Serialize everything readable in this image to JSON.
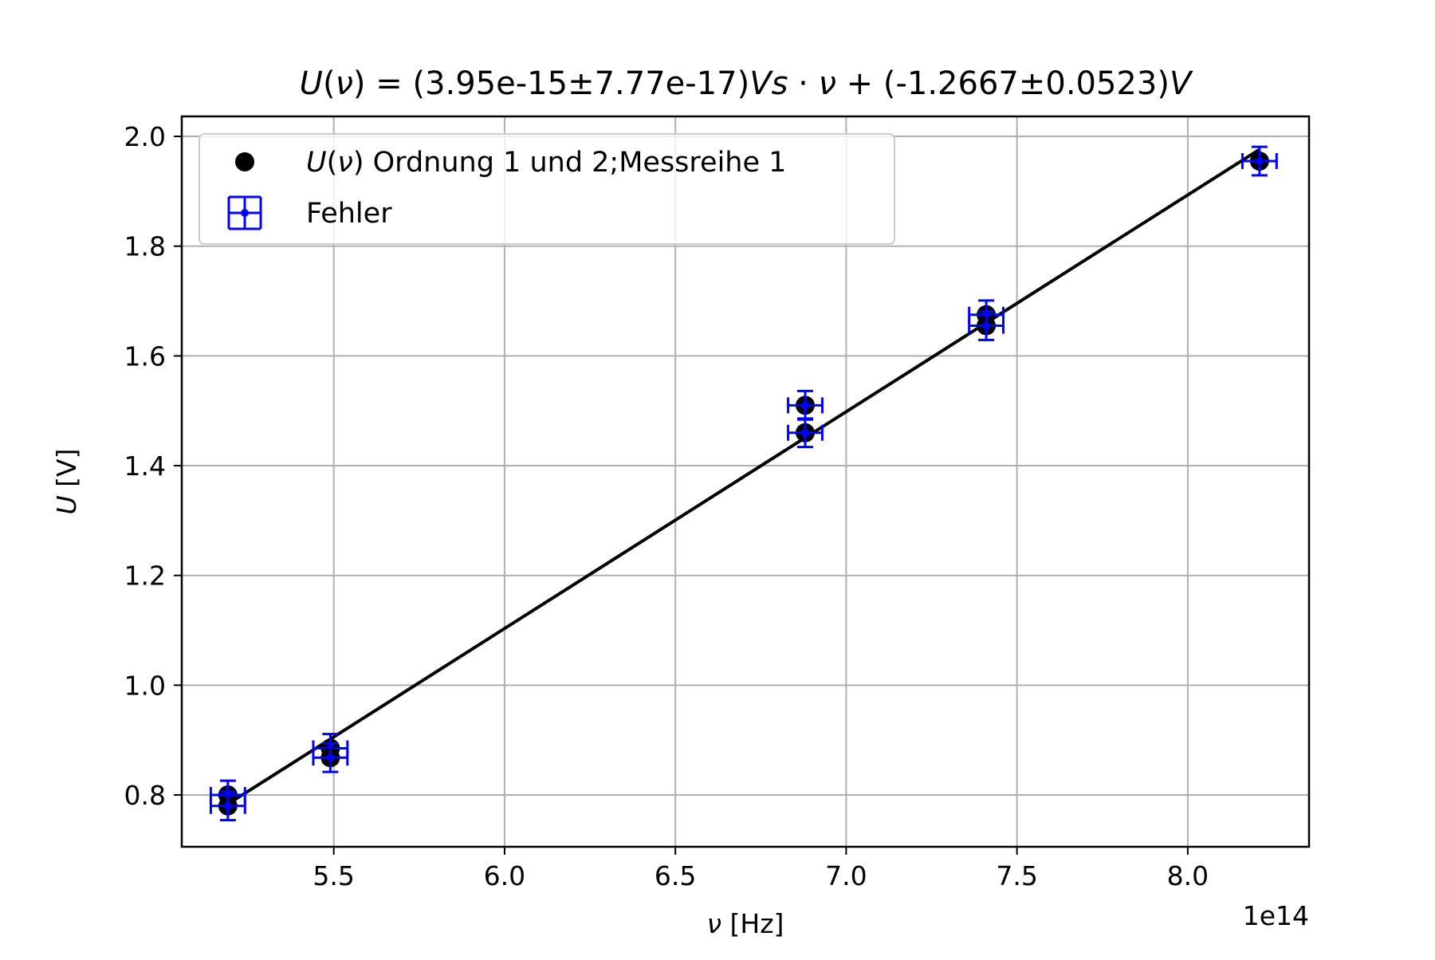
{
  "chart_data": {
    "type": "scatter",
    "title": {
      "parts": [
        {
          "text": "U",
          "italic": true
        },
        {
          "text": "(",
          "italic": false
        },
        {
          "text": "ν",
          "italic": true
        },
        {
          "text": ") = (3.95e-15±7.77e-17)",
          "italic": false
        },
        {
          "text": "Vs",
          "italic": true
        },
        {
          "text": " · ",
          "italic": false
        },
        {
          "text": "ν",
          "italic": true
        },
        {
          "text": " + (-1.2667±0.0523)",
          "italic": false
        },
        {
          "text": "V",
          "italic": true
        }
      ]
    },
    "xlabel": {
      "parts": [
        {
          "text": "ν",
          "italic": true
        },
        {
          "text": " [Hz]",
          "italic": false
        }
      ]
    },
    "ylabel": {
      "parts": [
        {
          "text": "U",
          "italic": true
        },
        {
          "text": " [V]",
          "italic": false
        }
      ]
    },
    "x_offset_label": "1e14",
    "x_scale": 100000000000000.0,
    "xlim": [
      5.055,
      8.355
    ],
    "ylim": [
      0.7056,
      2.0364
    ],
    "xticks": [
      "5.5",
      "6.0",
      "6.5",
      "7.0",
      "7.5",
      "8.0"
    ],
    "xtick_values": [
      5.5,
      6.0,
      6.5,
      7.0,
      7.5,
      8.0
    ],
    "yticks": [
      "0.8",
      "1.0",
      "1.2",
      "1.4",
      "1.6",
      "1.8",
      "2.0"
    ],
    "ytick_values": [
      0.8,
      1.0,
      1.2,
      1.4,
      1.6,
      1.8,
      2.0
    ],
    "grid": true,
    "legend_position": "upper-left",
    "legend": [
      {
        "label_parts": [
          {
            "text": "U",
            "italic": true
          },
          {
            "text": "(",
            "italic": false
          },
          {
            "text": "ν",
            "italic": true
          },
          {
            "text": ") Ordnung 1 und 2;Messreihe 1",
            "italic": false
          }
        ],
        "marker": "black-dot"
      },
      {
        "label_parts": [
          {
            "text": "Fehler",
            "italic": false
          }
        ],
        "marker": "blue-errorbar"
      }
    ],
    "series": [
      {
        "name": "U(ν) Ordnung 1 und 2;Messreihe 1",
        "x": [
          5.19,
          5.19,
          5.49,
          5.49,
          6.88,
          6.88,
          7.41,
          7.41,
          8.21
        ],
        "y": [
          0.8,
          0.78,
          0.885,
          0.868,
          1.51,
          1.46,
          1.675,
          1.655,
          1.955
        ],
        "x_err": 0.05,
        "y_err": 0.026,
        "marker_color": "#000000",
        "error_color": "#0000ff"
      }
    ],
    "fit_line": {
      "slope": 0.395,
      "intercept": -1.2667,
      "x_range": [
        5.19,
        8.21
      ],
      "color": "#000000"
    },
    "colors": {
      "grid": "#b0b0b0",
      "axes": "#000000",
      "legend_border": "#cccccc"
    }
  }
}
